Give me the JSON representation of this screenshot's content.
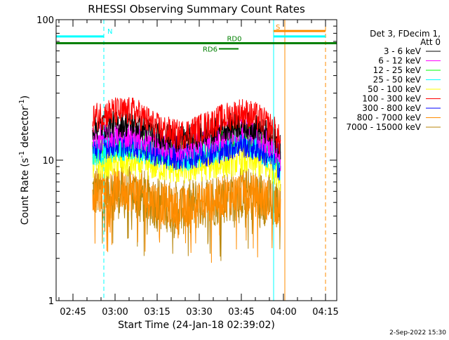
{
  "chart_data": {
    "type": "line",
    "title": "RHESSI Observing Summary Count Rates",
    "xlabel": "Start Time (24-Jan-18 02:39:02)",
    "ylabel_main": "Count Rate (s",
    "ylabel_sup1": "-1",
    "ylabel_mid": " detector",
    "ylabel_sup2": "-1",
    "ylabel_end": ")",
    "yscale": "log",
    "ylim": [
      1,
      100
    ],
    "xlim_minutes": [
      0,
      100
    ],
    "x_tick_labels": [
      {
        "label": "02:45",
        "minute": 6
      },
      {
        "label": "03:00",
        "minute": 21
      },
      {
        "label": "03:15",
        "minute": 36
      },
      {
        "label": "03:30",
        "minute": 51
      },
      {
        "label": "03:45",
        "minute": 66
      },
      {
        "label": "04:00",
        "minute": 81
      },
      {
        "label": "04:15",
        "minute": 96
      }
    ],
    "y_tick_labels": [
      {
        "label": "1",
        "value": 1
      },
      {
        "label": "10",
        "value": 10
      },
      {
        "label": "100",
        "value": 100
      }
    ],
    "legend_header": [
      "Det 3, FDecim 1,",
      "Att 0"
    ],
    "series": [
      {
        "name": "3 - 6 keV",
        "color": "#000000",
        "x": [
          13,
          20,
          28,
          36,
          44,
          52,
          60,
          66,
          72,
          78,
          80
        ],
        "values": [
          17,
          18,
          18,
          15,
          14,
          15,
          17,
          18,
          17,
          14,
          12
        ]
      },
      {
        "name": "6 - 12 keV",
        "color": "#ff00ff",
        "x": [
          13,
          20,
          28,
          36,
          44,
          52,
          60,
          66,
          72,
          78,
          80
        ],
        "values": [
          14,
          15,
          15,
          13,
          12,
          13,
          15,
          17,
          15,
          12,
          10
        ]
      },
      {
        "name": "12 - 25 keV",
        "color": "#00ff00",
        "x": [
          13,
          20,
          28,
          36,
          44,
          52,
          60,
          66,
          72,
          78,
          80
        ],
        "values": [
          12,
          13,
          13,
          12,
          11,
          12,
          13,
          15,
          13,
          11,
          9
        ]
      },
      {
        "name": "25 - 50 keV",
        "color": "#00ffff",
        "x": [
          13,
          20,
          28,
          36,
          44,
          52,
          60,
          66,
          72,
          78,
          80
        ],
        "values": [
          11,
          12,
          12,
          11,
          10,
          11,
          12,
          14,
          12,
          10,
          8.5
        ]
      },
      {
        "name": "50 - 100 keV",
        "color": "#ffff00",
        "x": [
          13,
          20,
          28,
          36,
          44,
          52,
          60,
          66,
          72,
          78,
          80
        ],
        "values": [
          9,
          9.5,
          9.5,
          9,
          8.5,
          9,
          9.5,
          10,
          9.5,
          8.5,
          7.5
        ]
      },
      {
        "name": "100 - 300 keV",
        "color": "#ff0000",
        "x": [
          13,
          20,
          28,
          36,
          44,
          52,
          60,
          66,
          72,
          78,
          80
        ],
        "values": [
          20,
          22,
          22,
          17,
          15,
          17,
          20,
          22,
          20,
          16,
          13
        ]
      },
      {
        "name": "300 - 800 keV",
        "color": "#0000ff",
        "x": [
          13,
          20,
          28,
          36,
          44,
          52,
          60,
          66,
          72,
          78,
          80
        ],
        "values": [
          12,
          13,
          13,
          11,
          10.5,
          11,
          12,
          13,
          12,
          10,
          8.5
        ]
      },
      {
        "name": "800 - 7000 keV",
        "color": "#ff8c00",
        "x": [
          13,
          20,
          28,
          36,
          44,
          52,
          60,
          66,
          72,
          78,
          80
        ],
        "values": [
          6,
          6.2,
          6,
          5,
          4.5,
          5,
          5.5,
          6,
          5.5,
          5,
          4.5
        ]
      },
      {
        "name": "7000 - 15000 keV",
        "color": "#b8860b",
        "x": [
          13,
          20,
          28,
          36,
          44,
          52,
          60,
          66,
          72,
          78,
          80
        ],
        "values": [
          6,
          6,
          5.8,
          5,
          4.5,
          5,
          5.5,
          5.8,
          5.5,
          5,
          4.5
        ]
      }
    ],
    "annotations": {
      "saa_label": "N",
      "saa_start_minute": 0,
      "saa_end_minute": 17,
      "saa_level": 76,
      "saa_color": "#00ffff",
      "s_label": "S",
      "s_start_minute": 77.5,
      "s_end_minute": 96,
      "s_upper_level": 83,
      "s_lower_level": 76,
      "s_color": "#ff8c00",
      "rd0_label": "RD0",
      "rd0_level": 68,
      "rd6_label": "RD6",
      "rd6_level": 62,
      "rd6_start_minute": 58,
      "rd6_end_minute": 65,
      "rd_color": "#008000",
      "vlines": [
        {
          "minute": 17,
          "color": "#00ffff",
          "dash": true
        },
        {
          "minute": 77.5,
          "color": "#00ffff",
          "dash": false
        },
        {
          "minute": 81.5,
          "color": "#ff8c00",
          "dash": false
        },
        {
          "minute": 96,
          "color": "#ff8c00",
          "dash": true
        }
      ]
    }
  },
  "footer": {
    "date_stamp": "2-Sep-2022 15:30"
  }
}
